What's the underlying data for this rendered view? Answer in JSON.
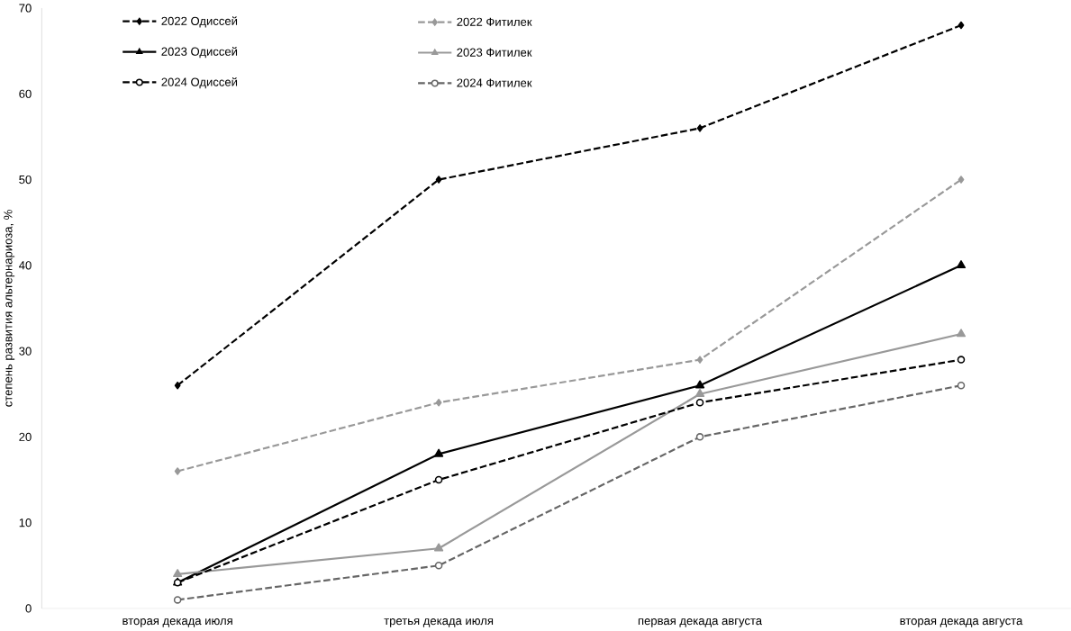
{
  "chart_data": {
    "type": "line",
    "ylabel": "степень развития альтернариоза, %",
    "categories": [
      "вторая декада июля",
      "третья декада июля",
      "первая декада августа",
      "вторая декада августа"
    ],
    "ylim": [
      0,
      70
    ],
    "yticks": [
      0,
      10,
      20,
      30,
      40,
      50,
      60,
      70
    ],
    "grid": false,
    "legend": "top left",
    "series": [
      {
        "name": "2022 Одиссей",
        "color": "#000000",
        "marker": "diamond",
        "line_style": "dashed",
        "values": [
          26,
          50,
          56,
          68
        ]
      },
      {
        "name": "2022 Фитилек",
        "color": "#999999",
        "marker": "diamond",
        "line_style": "dashed",
        "values": [
          16,
          24,
          29,
          50
        ]
      },
      {
        "name": "2023 Одиссей",
        "color": "#000000",
        "marker": "triangle",
        "line_style": "solid",
        "values": [
          3,
          18,
          26,
          40
        ]
      },
      {
        "name": "2023 Фитилек",
        "color": "#999999",
        "marker": "triangle",
        "line_style": "solid",
        "values": [
          4,
          7,
          25,
          32
        ]
      },
      {
        "name": "2024 Одиссей",
        "color": "#000000",
        "marker": "circle",
        "line_style": "dashed",
        "values": [
          3,
          15,
          24,
          29
        ]
      },
      {
        "name": "2024 Фитилек",
        "color": "#666666",
        "marker": "circle",
        "line_style": "dashed",
        "values": [
          1,
          5,
          20,
          26
        ]
      }
    ]
  }
}
